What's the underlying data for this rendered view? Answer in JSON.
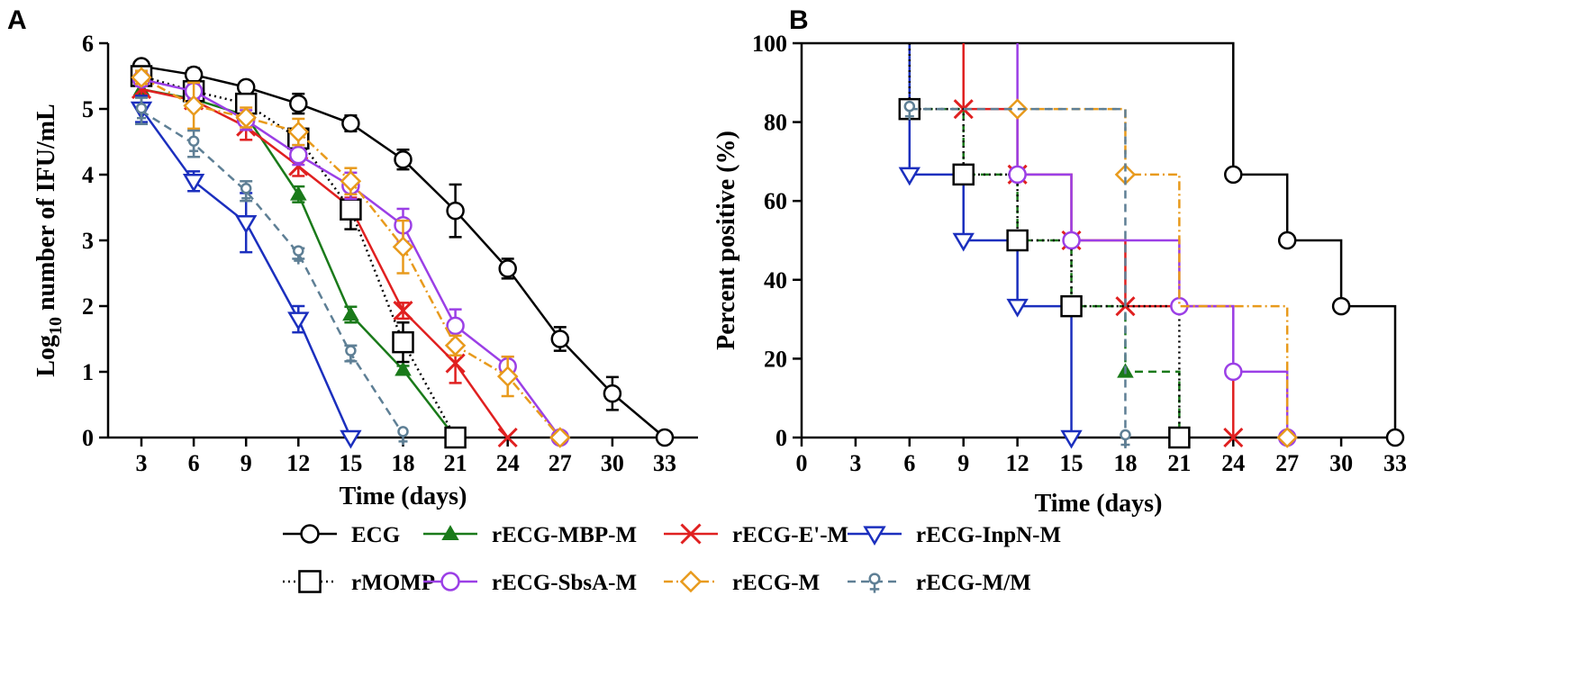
{
  "chart_data": [
    {
      "panel": "A",
      "type": "line",
      "xlabel": "Time (days)",
      "ylabel_base": "Log",
      "ylabel_sub": "10",
      "ylabel_rest": " number of IFU/mL",
      "x_ticks": [
        "3",
        "6",
        "9",
        "12",
        "15",
        "18",
        "21",
        "24",
        "27",
        "30",
        "33"
      ],
      "y_ticks": [
        "0",
        "1",
        "2",
        "3",
        "4",
        "5",
        "6"
      ],
      "ylim": [
        0,
        6
      ],
      "series": [
        {
          "name": "ECG",
          "color": "#000000",
          "marker": "circle-open",
          "dash": "solid",
          "x": [
            "3",
            "6",
            "9",
            "12",
            "15",
            "18",
            "21",
            "24",
            "27",
            "30",
            "33"
          ],
          "y": [
            5.65,
            5.52,
            5.33,
            5.08,
            4.78,
            4.23,
            3.45,
            2.57,
            1.5,
            0.67,
            0
          ],
          "err": [
            0.06,
            0.1,
            0.08,
            0.15,
            0.12,
            0.15,
            0.4,
            0.15,
            0.18,
            0.25,
            0
          ]
        },
        {
          "name": "rECG-MBP-M",
          "color": "#1a7a1a",
          "marker": "triangle-filled",
          "dash": "solid",
          "x": [
            "3",
            "6",
            "9",
            "12",
            "15",
            "18",
            "21"
          ],
          "y": [
            5.3,
            5.15,
            4.9,
            3.7,
            1.87,
            1.03,
            0
          ],
          "err": [
            0.08,
            0.1,
            0.1,
            0.12,
            0.12,
            0.06,
            0
          ]
        },
        {
          "name": "rECG-E'-M",
          "color": "#e02020",
          "marker": "x",
          "dash": "solid",
          "x": [
            "3",
            "6",
            "9",
            "12",
            "15",
            "18",
            "21",
            "24"
          ],
          "y": [
            5.3,
            5.13,
            4.73,
            4.13,
            3.5,
            1.93,
            1.13,
            0
          ],
          "err": [
            0.1,
            0.1,
            0.2,
            0.15,
            0.15,
            0.12,
            0.3,
            0
          ]
        },
        {
          "name": "rECG-InpN-M",
          "color": "#1b2fbe",
          "marker": "triangle-down-open",
          "dash": "solid",
          "x": [
            "3",
            "6",
            "9",
            "12",
            "15"
          ],
          "y": [
            5.0,
            3.9,
            3.27,
            1.8,
            0
          ],
          "err": [
            0.2,
            0.15,
            0.45,
            0.2,
            0
          ]
        },
        {
          "name": "rMOMP",
          "color": "#000000",
          "marker": "square-open",
          "dash": "dot",
          "x": [
            "3",
            "6",
            "9",
            "12",
            "15",
            "18",
            "21"
          ],
          "y": [
            5.5,
            5.27,
            5.08,
            4.55,
            3.47,
            1.45,
            0
          ],
          "err": [
            0.1,
            0.1,
            0.12,
            0.15,
            0.3,
            0.3,
            0
          ]
        },
        {
          "name": "rECG-SbsA-M",
          "color": "#9b3fe6",
          "marker": "circle-open",
          "dash": "solid",
          "x": [
            "3",
            "6",
            "9",
            "12",
            "15",
            "18",
            "21",
            "24",
            "27"
          ],
          "y": [
            5.45,
            5.27,
            4.83,
            4.3,
            3.83,
            3.23,
            1.7,
            1.08,
            0
          ],
          "err": [
            0.1,
            0.12,
            0.15,
            0.15,
            0.2,
            0.25,
            0.25,
            0.15,
            0
          ]
        },
        {
          "name": "rECG-M",
          "color": "#e89a1c",
          "marker": "diamond-open",
          "dash": "dashdot",
          "x": [
            "3",
            "6",
            "9",
            "12",
            "15",
            "18",
            "21",
            "24",
            "27"
          ],
          "y": [
            5.48,
            5.05,
            4.87,
            4.65,
            3.9,
            2.9,
            1.4,
            0.93,
            0
          ],
          "err": [
            0.1,
            0.35,
            0.15,
            0.2,
            0.2,
            0.4,
            0.15,
            0.3,
            0
          ]
        },
        {
          "name": "rECG-M/M",
          "color": "#5e7f95",
          "marker": "venus",
          "dash": "dash",
          "x": [
            "3",
            "6",
            "9",
            "12",
            "15",
            "18"
          ],
          "y": [
            4.97,
            4.47,
            3.75,
            2.8,
            1.28,
            0.05
          ],
          "err": [
            0.2,
            0.2,
            0.15,
            0.08,
            0.12,
            0
          ]
        }
      ]
    },
    {
      "panel": "B",
      "type": "step",
      "xlabel": "Time (days)",
      "ylabel": "Percent  positive (%)",
      "x_ticks": [
        "0",
        "3",
        "6",
        "9",
        "12",
        "15",
        "18",
        "21",
        "24",
        "27",
        "30",
        "33"
      ],
      "y_ticks": [
        "0",
        "20",
        "40",
        "60",
        "80",
        "100"
      ],
      "xlim": [
        0,
        33
      ],
      "ylim": [
        0,
        100
      ],
      "series": [
        {
          "name": "ECG",
          "color": "#000000",
          "marker": "circle-open",
          "dash": "solid",
          "steps": [
            [
              0,
              100
            ],
            [
              24,
              66.7
            ],
            [
              27,
              50
            ],
            [
              30,
              33.3
            ],
            [
              33,
              0
            ]
          ],
          "markers": [
            [
              24,
              66.7
            ],
            [
              27,
              50
            ],
            [
              30,
              33.3
            ],
            [
              33,
              0
            ]
          ]
        },
        {
          "name": "rECG-MBP-M",
          "color": "#1a7a1a",
          "marker": "triangle-filled",
          "dash": "dash",
          "steps": [
            [
              6,
              100
            ],
            [
              6,
              83.3
            ],
            [
              9,
              66.7
            ],
            [
              12,
              50
            ],
            [
              15,
              33.3
            ],
            [
              18,
              16.7
            ],
            [
              21,
              0
            ]
          ],
          "markers": [
            [
              9,
              66.7
            ],
            [
              12,
              50
            ],
            [
              15,
              33.3
            ],
            [
              18,
              16.7
            ],
            [
              21,
              0
            ]
          ]
        },
        {
          "name": "rECG-E'-M",
          "color": "#e02020",
          "marker": "x",
          "dash": "solid",
          "steps": [
            [
              9,
              100
            ],
            [
              9,
              83.3
            ],
            [
              12,
              66.7
            ],
            [
              15,
              50
            ],
            [
              18,
              33.3
            ],
            [
              24,
              0
            ]
          ],
          "markers": [
            [
              9,
              83.3
            ],
            [
              12,
              66.7
            ],
            [
              15,
              50
            ],
            [
              18,
              33.3
            ],
            [
              24,
              0
            ]
          ]
        },
        {
          "name": "rECG-InpN-M",
          "color": "#1b2fbe",
          "marker": "triangle-down-open",
          "dash": "solid",
          "steps": [
            [
              6,
              100
            ],
            [
              6,
              66.7
            ],
            [
              9,
              50
            ],
            [
              12,
              33.3
            ],
            [
              15,
              0
            ]
          ],
          "markers": [
            [
              6,
              66.7
            ],
            [
              9,
              50
            ],
            [
              12,
              33.3
            ],
            [
              15,
              0
            ]
          ]
        },
        {
          "name": "rMOMP",
          "color": "#000000",
          "marker": "square-open",
          "dash": "dot",
          "steps": [
            [
              6,
              100
            ],
            [
              6,
              83.3
            ],
            [
              9,
              66.7
            ],
            [
              12,
              50
            ],
            [
              15,
              33.3
            ],
            [
              21,
              0
            ]
          ],
          "markers": [
            [
              6,
              83.3
            ],
            [
              9,
              66.7
            ],
            [
              12,
              50
            ],
            [
              15,
              33.3
            ],
            [
              21,
              0
            ]
          ]
        },
        {
          "name": "rECG-SbsA-M",
          "color": "#9b3fe6",
          "marker": "circle-open",
          "dash": "solid",
          "steps": [
            [
              12,
              100
            ],
            [
              12,
              66.7
            ],
            [
              15,
              50
            ],
            [
              21,
              33.3
            ],
            [
              24,
              16.7
            ],
            [
              27,
              0
            ]
          ],
          "markers": [
            [
              12,
              66.7
            ],
            [
              15,
              50
            ],
            [
              21,
              33.3
            ],
            [
              24,
              16.7
            ],
            [
              27,
              0
            ]
          ]
        },
        {
          "name": "rECG-M",
          "color": "#e89a1c",
          "marker": "diamond-open",
          "dash": "dashdot",
          "steps": [
            [
              12,
              83.3
            ],
            [
              18,
              66.7
            ],
            [
              21,
              33.3
            ],
            [
              27,
              0
            ]
          ],
          "markers": [
            [
              12,
              83.3
            ],
            [
              18,
              66.7
            ],
            [
              27,
              0
            ]
          ]
        },
        {
          "name": "rECG-M/M",
          "color": "#5e7f95",
          "marker": "venus",
          "dash": "dash",
          "steps": [
            [
              6,
              83.3
            ],
            [
              18,
              0
            ]
          ],
          "markers": [
            [
              6,
              83.3
            ],
            [
              18,
              0
            ]
          ]
        }
      ]
    }
  ],
  "legend": {
    "items": [
      "ECG",
      "rECG-MBP-M",
      "rECG-E'-M",
      "rECG-InpN-M",
      "rMOMP",
      "rECG-SbsA-M",
      "rECG-M",
      "rECG-M/M"
    ]
  }
}
